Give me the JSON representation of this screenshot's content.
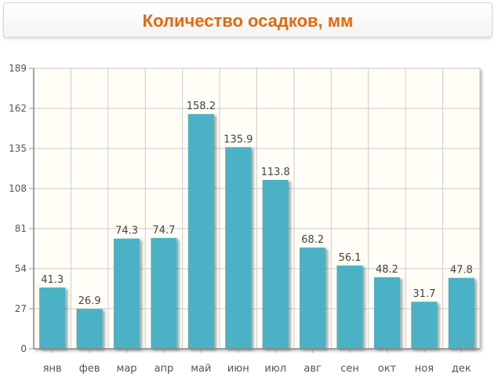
{
  "title": "Количество осадков, мм",
  "colors": {
    "bar": "#4bb2c5",
    "plot_bg": "#fffdf6",
    "grid": "#cccccc",
    "title": "#e2690f"
  },
  "chart_data": {
    "type": "bar",
    "title": "Количество осадков, мм",
    "categories": [
      "янв",
      "фев",
      "мар",
      "апр",
      "май",
      "июн",
      "июл",
      "авг",
      "сен",
      "окт",
      "ноя",
      "дек"
    ],
    "values": [
      41.3,
      26.9,
      74.3,
      74.7,
      158.2,
      135.9,
      113.8,
      68.2,
      56.1,
      48.2,
      31.7,
      47.8
    ],
    "value_labels": [
      "41.3",
      "26.9",
      "74.3",
      "74.7",
      "158.2",
      "135.9",
      "113.8",
      "68.2",
      "56.1",
      "48.2",
      "31.7",
      "47.8"
    ],
    "yticks": [
      0,
      27,
      54,
      81,
      108,
      135,
      162,
      189
    ],
    "ylim": [
      0,
      189
    ],
    "grid": true,
    "xlabel": "",
    "ylabel": ""
  }
}
